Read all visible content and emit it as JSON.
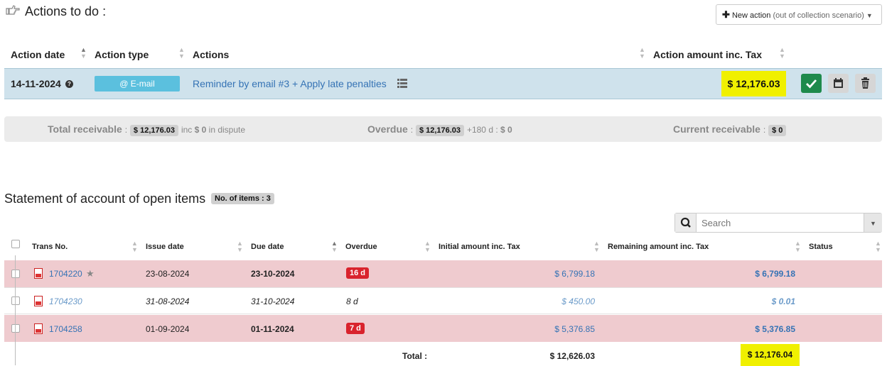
{
  "actions": {
    "title": "Actions to do :",
    "new_action": {
      "label": "New action",
      "sublabel": "(out of collection scenario)"
    },
    "columns": {
      "date": "Action date",
      "type": "Action type",
      "actions": "Actions",
      "amount": "Action amount inc. Tax"
    },
    "row": {
      "date": "14-11-2024",
      "type": "E-mail",
      "type_prefix": "@",
      "description": "Reminder by email #3 + Apply late penalties",
      "amount": "$ 12,176.03"
    }
  },
  "summary": {
    "total_label": "Total receivable",
    "total_value": "$ 12,176.03",
    "inc": "inc",
    "dispute_value": "$ 0",
    "dispute_text": "in dispute",
    "overdue_label": "Overdue",
    "overdue_value": "$ 12,176.03",
    "overdue_180": "+180 d :",
    "overdue_180_value": "$ 0",
    "current_label": "Current receivable",
    "current_value": "$ 0",
    "sep": ":"
  },
  "statement": {
    "title": "Statement of account of open items",
    "count_badge": "No. of items : 3",
    "search_placeholder": "Search",
    "columns": {
      "trans": "Trans No.",
      "issue": "Issue date",
      "due": "Due date",
      "overdue": "Overdue",
      "initial": "Initial amount inc. Tax",
      "remaining": "Remaining amount inc. Tax",
      "status": "Status"
    },
    "rows": [
      {
        "trans": "1704220",
        "issue": "23-08-2024",
        "due": "23-10-2024",
        "overdue": "16 d",
        "initial": "$ 6,799.18",
        "remaining": "$ 6,799.18"
      },
      {
        "trans": "1704230",
        "issue": "31-08-2024",
        "due": "31-10-2024",
        "overdue": "8 d",
        "initial": "$ 450.00",
        "remaining": "$ 0.01"
      },
      {
        "trans": "1704258",
        "issue": "01-09-2024",
        "due": "01-11-2024",
        "overdue": "7 d",
        "initial": "$ 5,376.85",
        "remaining": "$ 5,376.85"
      }
    ],
    "total_label": "Total :",
    "total_initial": "$ 12,626.03",
    "total_remaining": "$ 12,176.04"
  },
  "colors": {
    "selected_row": "#cfe2ec",
    "overdue_row": "#efcbcf",
    "highlight": "#f0f000",
    "email_badge": "#5bc0de",
    "success": "#1e8a4c"
  },
  "icons": [
    "hand-point-right-icon",
    "plus-icon",
    "caret-down-icon",
    "question-circle-icon",
    "list-icon",
    "check-icon",
    "calendar-icon",
    "trash-icon",
    "search-icon",
    "pdf-file-icon",
    "star-icon"
  ]
}
